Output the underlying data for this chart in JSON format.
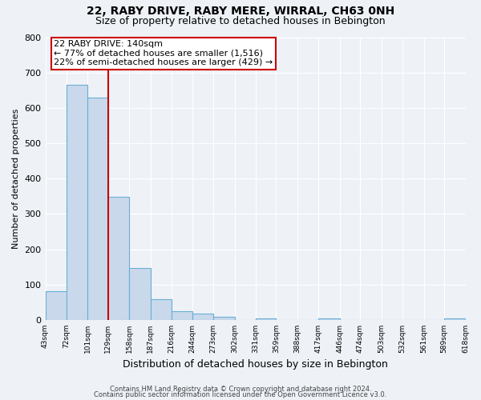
{
  "title": "22, RABY DRIVE, RABY MERE, WIRRAL, CH63 0NH",
  "subtitle": "Size of property relative to detached houses in Bebington",
  "xlabel": "Distribution of detached houses by size in Bebington",
  "ylabel": "Number of detached properties",
  "bar_edges": [
    43,
    72,
    101,
    129,
    158,
    187,
    216,
    244,
    273,
    302,
    331,
    359,
    388,
    417,
    446,
    474,
    503,
    532,
    561,
    589,
    618
  ],
  "bar_heights": [
    82,
    665,
    630,
    348,
    148,
    58,
    25,
    18,
    10,
    0,
    5,
    0,
    0,
    5,
    0,
    0,
    0,
    0,
    0,
    5
  ],
  "bar_color": "#c9d9eb",
  "bar_edgecolor": "#6aaed6",
  "vline_x": 129,
  "vline_color": "#cc0000",
  "annotation_title": "22 RABY DRIVE: 140sqm",
  "annotation_line1": "← 77% of detached houses are smaller (1,516)",
  "annotation_line2": "22% of semi-detached houses are larger (429) →",
  "annotation_box_facecolor": "white",
  "annotation_box_edgecolor": "#cc0000",
  "ylim": [
    0,
    800
  ],
  "yticks": [
    0,
    100,
    200,
    300,
    400,
    500,
    600,
    700,
    800
  ],
  "tick_labels": [
    "43sqm",
    "72sqm",
    "101sqm",
    "129sqm",
    "158sqm",
    "187sqm",
    "216sqm",
    "244sqm",
    "273sqm",
    "302sqm",
    "331sqm",
    "359sqm",
    "388sqm",
    "417sqm",
    "446sqm",
    "474sqm",
    "503sqm",
    "532sqm",
    "561sqm",
    "589sqm",
    "618sqm"
  ],
  "footer1": "Contains HM Land Registry data © Crown copyright and database right 2024.",
  "footer2": "Contains public sector information licensed under the Open Government Licence v3.0.",
  "background_color": "#eef2f7",
  "grid_color": "#ffffff",
  "title_fontsize": 10,
  "subtitle_fontsize": 9,
  "xlabel_fontsize": 9,
  "ylabel_fontsize": 8,
  "tick_fontsize": 6.5,
  "footer_fontsize": 6,
  "annotation_fontsize": 8
}
